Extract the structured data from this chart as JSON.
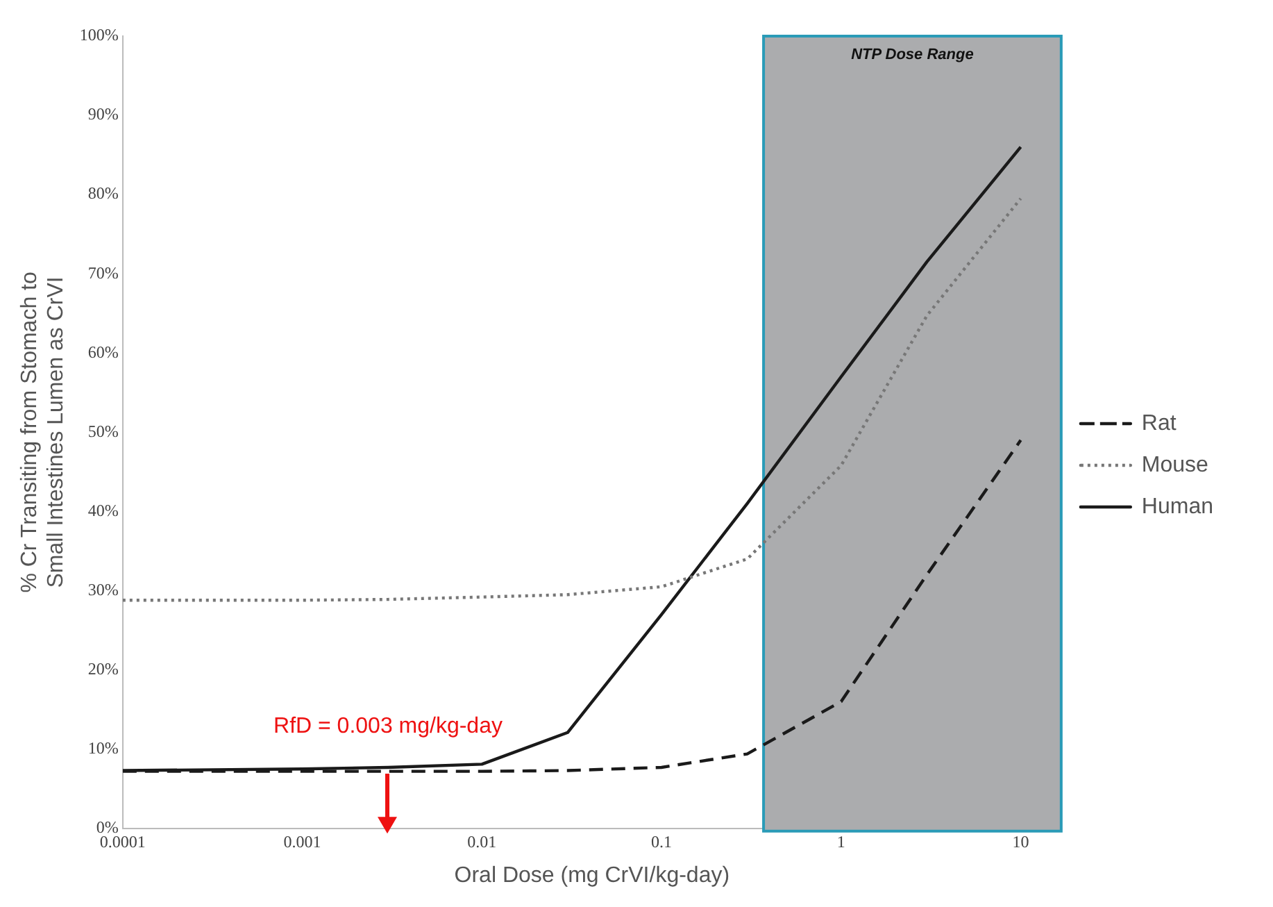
{
  "chart_data": {
    "type": "line",
    "xlabel": "Oral Dose (mg CrVI/kg-day)",
    "ylabel": "% Cr Transiting from Stomach to Small Intestines Lumen as CrVI",
    "log": "x",
    "xlim": [
      0.0001,
      16.8
    ],
    "xticks": [
      0.0001,
      0.001,
      0.01,
      0.1,
      1,
      10
    ],
    "ylim": [
      0,
      100
    ],
    "yticks": [
      {
        "value": 0,
        "label": "0%"
      },
      {
        "value": 10,
        "label": "10%"
      },
      {
        "value": 20,
        "label": "20%"
      },
      {
        "value": 30,
        "label": "30%"
      },
      {
        "value": 40,
        "label": "40%"
      },
      {
        "value": 50,
        "label": "50%"
      },
      {
        "value": 60,
        "label": "60%"
      },
      {
        "value": 70,
        "label": "70%"
      },
      {
        "value": 80,
        "label": "80%"
      },
      {
        "value": 90,
        "label": "90%"
      },
      {
        "value": 100,
        "label": "100%"
      }
    ],
    "x": [
      0.0001,
      0.001,
      0.003,
      0.01,
      0.03,
      0.1,
      0.3,
      1,
      3,
      10
    ],
    "series": [
      {
        "name": "Rat",
        "color": "#1a1a1a",
        "line_style": "dashed",
        "values": [
          7.2,
          7.2,
          7.2,
          7.2,
          7.3,
          7.7,
          9.4,
          16,
          32,
          49
        ]
      },
      {
        "name": "Mouse",
        "color": "#777777",
        "line_style": "dotted",
        "values": [
          28.8,
          28.8,
          28.9,
          29.2,
          29.5,
          30.5,
          34,
          45.8,
          64.7,
          79.5
        ]
      },
      {
        "name": "Human",
        "color": "#1a1a1a",
        "line_style": "solid",
        "values": [
          7.3,
          7.5,
          7.7,
          8.1,
          12.1,
          27,
          41,
          57,
          71.5,
          86
        ]
      }
    ],
    "bands": [
      {
        "axis": "x",
        "from": 0.37,
        "to": 16.8,
        "label": "NTP Dose Range",
        "color": "#abacae"
      }
    ],
    "annotations": [
      {
        "text": "RfD = 0.003 mg/kg-day",
        "x": 0.003,
        "y": 7.2
      }
    ],
    "legend": "right",
    "grid": false,
    "marker": "none"
  }
}
